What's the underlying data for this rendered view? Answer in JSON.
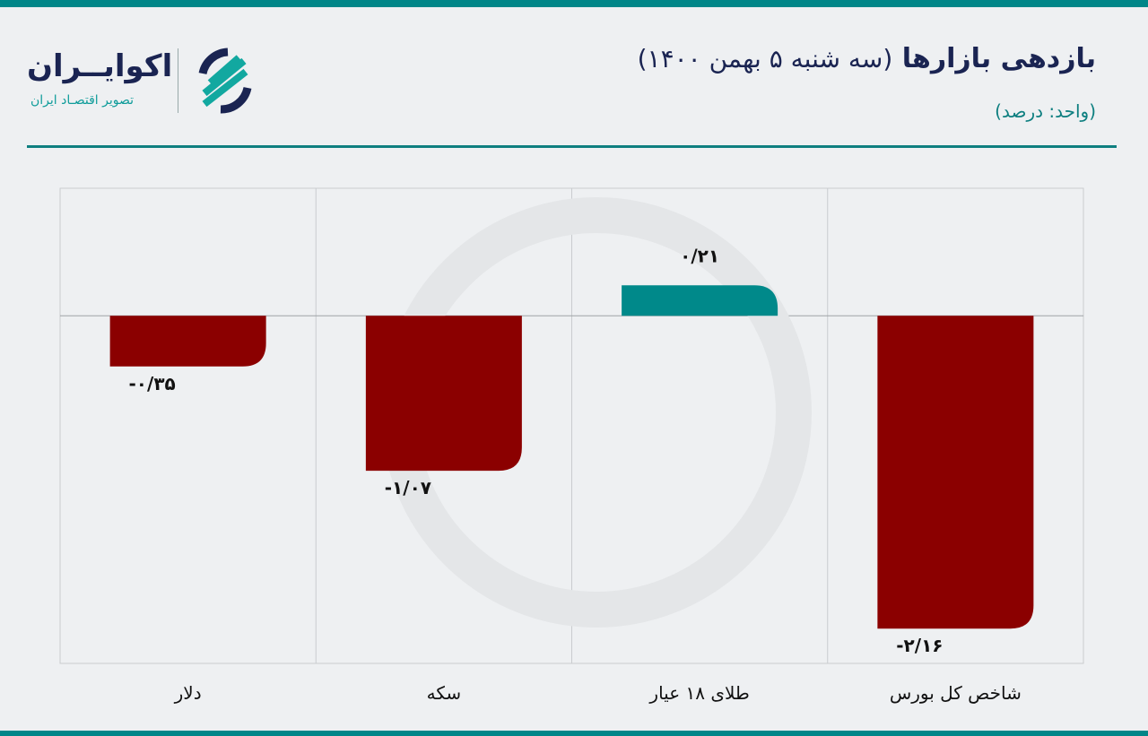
{
  "header": {
    "title": "بازدهی بازارها",
    "title_date": "(سه شنبه ۵ بهمن ۱۴۰۰)",
    "unit": "(واحد: درصد)"
  },
  "logo": {
    "name": "اکوایــران",
    "tagline": "تصویر اقتصـاد ایران"
  },
  "colors": {
    "negative": "#8b0000",
    "positive": "#00898a",
    "accent": "#008688"
  },
  "chart_data": {
    "type": "bar",
    "title": "بازدهی بازارها (سه شنبه ۵ بهمن ۱۴۰۰)",
    "ylabel": "درصد",
    "xlabel": "",
    "categories": [
      "دلار",
      "سکه",
      "طلای ۱۸ عیار",
      "شاخص کل بورس"
    ],
    "values": [
      -0.35,
      -1.07,
      0.21,
      -2.16
    ],
    "data_labels": [
      "-۰/۳۵",
      "-۱/۰۷",
      "۰/۲۱",
      "-۲/۱۶"
    ],
    "ylim": [
      -2.4,
      0.88
    ],
    "grid": true
  }
}
